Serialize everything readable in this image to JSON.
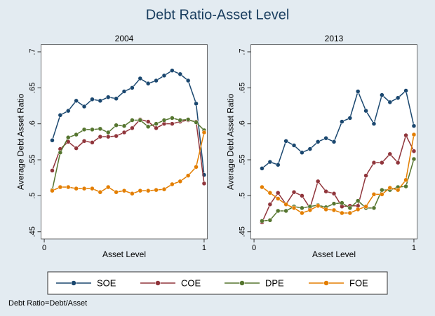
{
  "title": "Debt Ratio-Asset Level",
  "note": "Debt Ratio=Debt/Asset",
  "chart_data": [
    {
      "type": "line",
      "title": "2004",
      "xlabel": "Asset Level",
      "ylabel": "Average Debt Asset Ratio",
      "xlim": [
        -0.02,
        1.02
      ],
      "xticks": [
        0,
        1
      ],
      "ylim": [
        0.44,
        0.71
      ],
      "yticks": [
        {
          "value": 0.45,
          "label": ".45"
        },
        {
          "value": 0.5,
          "label": ".5"
        },
        {
          "value": 0.55,
          "label": ".55"
        },
        {
          "value": 0.6,
          "label": ".6"
        },
        {
          "value": 0.65,
          "label": ".65"
        },
        {
          "value": 0.7,
          "label": ".7"
        }
      ],
      "x": [
        0.05,
        0.1,
        0.15,
        0.2,
        0.25,
        0.3,
        0.35,
        0.4,
        0.45,
        0.5,
        0.55,
        0.6,
        0.65,
        0.7,
        0.75,
        0.8,
        0.85,
        0.9,
        0.95,
        1.0
      ],
      "series": [
        {
          "name": "SOE",
          "color": "#1a476f",
          "values": [
            0.577,
            0.612,
            0.618,
            0.632,
            0.624,
            0.634,
            0.632,
            0.637,
            0.635,
            0.645,
            0.65,
            0.663,
            0.656,
            0.66,
            0.667,
            0.674,
            0.669,
            0.66,
            0.628,
            0.529
          ]
        },
        {
          "name": "COE",
          "color": "#90353b",
          "values": [
            0.535,
            0.565,
            0.575,
            0.566,
            0.576,
            0.574,
            0.582,
            0.582,
            0.583,
            0.588,
            0.594,
            0.606,
            0.603,
            0.594,
            0.6,
            0.6,
            0.603,
            0.605,
            0.603,
            0.517
          ]
        },
        {
          "name": "DPE",
          "color": "#55752f",
          "values": [
            0.508,
            0.56,
            0.581,
            0.585,
            0.592,
            0.592,
            0.593,
            0.588,
            0.598,
            0.597,
            0.605,
            0.605,
            0.596,
            0.6,
            0.605,
            0.608,
            0.605,
            0.606,
            0.602,
            0.591
          ]
        },
        {
          "name": "FOE",
          "color": "#e37e00",
          "values": [
            0.507,
            0.512,
            0.512,
            0.51,
            0.51,
            0.51,
            0.505,
            0.512,
            0.505,
            0.507,
            0.503,
            0.507,
            0.507,
            0.508,
            0.509,
            0.516,
            0.52,
            0.528,
            0.54,
            0.588
          ]
        }
      ]
    },
    {
      "type": "line",
      "title": "2013",
      "xlabel": "Asset Level",
      "ylabel": "Average Debt Asset Ratio",
      "xlim": [
        -0.02,
        1.02
      ],
      "xticks": [
        0,
        1
      ],
      "ylim": [
        0.44,
        0.71
      ],
      "yticks": [
        {
          "value": 0.45,
          "label": ".45"
        },
        {
          "value": 0.5,
          "label": ".5"
        },
        {
          "value": 0.55,
          "label": ".55"
        },
        {
          "value": 0.6,
          "label": ".6"
        },
        {
          "value": 0.65,
          "label": ".65"
        },
        {
          "value": 0.7,
          "label": ".7"
        }
      ],
      "x": [
        0.05,
        0.1,
        0.15,
        0.2,
        0.25,
        0.3,
        0.35,
        0.4,
        0.45,
        0.5,
        0.55,
        0.6,
        0.65,
        0.7,
        0.75,
        0.8,
        0.85,
        0.9,
        0.95,
        1.0
      ],
      "series": [
        {
          "name": "SOE",
          "color": "#1a476f",
          "values": [
            0.538,
            0.547,
            0.543,
            0.576,
            0.57,
            0.56,
            0.565,
            0.575,
            0.58,
            0.575,
            0.603,
            0.608,
            0.645,
            0.618,
            0.6,
            0.64,
            0.63,
            0.636,
            0.646,
            0.597
          ]
        },
        {
          "name": "COE",
          "color": "#90353b",
          "values": [
            0.463,
            0.488,
            0.504,
            0.488,
            0.505,
            0.5,
            0.483,
            0.52,
            0.506,
            0.503,
            0.485,
            0.486,
            0.486,
            0.528,
            0.546,
            0.546,
            0.558,
            0.546,
            0.584,
            0.562
          ]
        },
        {
          "name": "DPE",
          "color": "#55752f",
          "values": [
            0.465,
            0.466,
            0.479,
            0.479,
            0.485,
            0.483,
            0.485,
            0.487,
            0.484,
            0.489,
            0.49,
            0.483,
            0.493,
            0.483,
            0.483,
            0.508,
            0.508,
            0.512,
            0.513,
            0.551
          ]
        },
        {
          "name": "FOE",
          "color": "#e37e00",
          "values": [
            0.512,
            0.504,
            0.496,
            0.488,
            0.483,
            0.476,
            0.48,
            0.486,
            0.481,
            0.48,
            0.476,
            0.476,
            0.481,
            0.485,
            0.502,
            0.502,
            0.511,
            0.508,
            0.522,
            0.585
          ]
        }
      ]
    }
  ]
}
